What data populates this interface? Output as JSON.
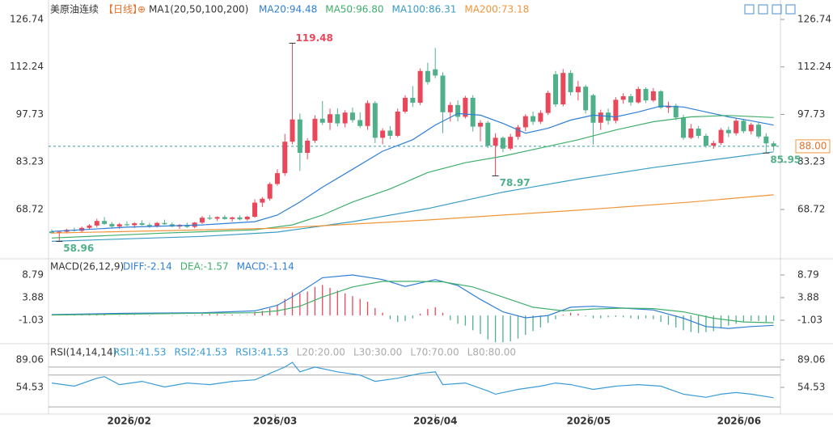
{
  "chart_data": [
    {
      "type": "candlestick",
      "title": "美原油连续",
      "period": "【日线】",
      "icon": "⊕",
      "indicator": "MA1(20,50,100,200)",
      "up_color": "#e8485a",
      "down_color": "#4fb08a",
      "xlim": [
        -0.43,
        96.9
      ],
      "ylim": [
        54.15,
        131.68
      ],
      "xticks": [
        {
          "value": 10.3,
          "label": "2026/02"
        },
        {
          "value": 29.7,
          "label": "2026/03"
        },
        {
          "value": 51,
          "label": "2026/04"
        },
        {
          "value": 71.4,
          "label": "2026/05"
        },
        {
          "value": 91.4,
          "label": "2026/06"
        }
      ],
      "yticks": [
        126.74,
        112.24,
        97.73,
        83.23,
        68.72
      ],
      "last_price": {
        "value": 88,
        "label": "88.00"
      },
      "marked_highs": [
        32
      ],
      "marked_lows": [
        1,
        59,
        95
      ],
      "candles": [
        [
          62,
          62.6,
          61.3,
          61.5
        ],
        [
          61.5,
          62.2,
          58.96,
          61.9
        ],
        [
          61.9,
          62.8,
          61.4,
          62.5
        ],
        [
          62.5,
          63.2,
          62,
          62.2
        ],
        [
          62.2,
          63.5,
          61.8,
          63.1
        ],
        [
          63.1,
          64.2,
          62.6,
          63.8
        ],
        [
          63.8,
          65.9,
          63.2,
          65.2
        ],
        [
          65.2,
          66.4,
          64,
          64.3
        ],
        [
          64.3,
          64.9,
          63,
          63.5
        ],
        [
          63.5,
          64.6,
          62.8,
          64.2
        ],
        [
          64.2,
          65.1,
          63.6,
          63.9
        ],
        [
          63.9,
          64.8,
          63,
          64.5
        ],
        [
          64.5,
          65.4,
          63.8,
          64
        ],
        [
          64,
          64.6,
          63.1,
          63.6
        ],
        [
          63.6,
          64.9,
          63.2,
          64.6
        ],
        [
          64.6,
          65.6,
          64,
          64.2
        ],
        [
          64.2,
          64.8,
          63.3,
          63.5
        ],
        [
          63.5,
          64.3,
          62.8,
          64
        ],
        [
          64,
          64.7,
          63.1,
          63.4
        ],
        [
          63.4,
          64.9,
          63,
          64.7
        ],
        [
          64.7,
          66.7,
          64.3,
          66.2
        ],
        [
          66.2,
          67,
          65.5,
          65.9
        ],
        [
          65.9,
          66.6,
          65.2,
          66.4
        ],
        [
          66.4,
          67,
          65.6,
          65.8
        ],
        [
          65.8,
          66.5,
          65,
          66.3
        ],
        [
          66.3,
          66.9,
          65.4,
          65.7
        ],
        [
          65.7,
          66.8,
          65.2,
          66.5
        ],
        [
          66.5,
          71.8,
          66.2,
          70.8
        ],
        [
          70.8,
          72.5,
          69.5,
          72
        ],
        [
          72,
          77,
          71.4,
          76.5
        ],
        [
          76.5,
          81,
          76,
          79.8
        ],
        [
          79.8,
          91.8,
          79,
          89.4
        ],
        [
          89.4,
          119.48,
          88.6,
          96.2
        ],
        [
          96.2,
          98,
          80.5,
          86
        ],
        [
          86,
          90.5,
          84,
          89.7
        ],
        [
          89.7,
          97.5,
          89,
          96.4
        ],
        [
          96.4,
          101.8,
          94.5,
          95.2
        ],
        [
          95.2,
          99.5,
          93,
          97.8
        ],
        [
          97.8,
          99.6,
          94,
          95
        ],
        [
          95,
          99,
          93.8,
          98.3
        ],
        [
          98.3,
          99.8,
          95.2,
          96
        ],
        [
          96,
          98.4,
          93.6,
          94.2
        ],
        [
          94.2,
          102,
          93,
          101.2
        ],
        [
          101.2,
          101.8,
          89,
          90.6
        ],
        [
          90.6,
          93.5,
          88.6,
          92.8
        ],
        [
          92.8,
          94.2,
          90.2,
          91.2
        ],
        [
          91.2,
          99.5,
          90.8,
          98.6
        ],
        [
          98.6,
          103.6,
          98,
          102.8
        ],
        [
          102.8,
          106.4,
          100,
          101.3
        ],
        [
          101.3,
          111.8,
          100.6,
          111
        ],
        [
          111,
          113.5,
          106.8,
          107.6
        ],
        [
          111.5,
          118,
          108.8,
          109.6
        ],
        [
          109.6,
          110.6,
          92,
          98.4
        ],
        [
          98.4,
          101.5,
          95.5,
          100.6
        ],
        [
          100.6,
          102,
          95.6,
          97
        ],
        [
          97,
          103.4,
          96.5,
          102.8
        ],
        [
          102.8,
          103.6,
          92.5,
          94
        ],
        [
          94,
          96,
          89.5,
          95.2
        ],
        [
          95.2,
          95.8,
          87.5,
          88.2
        ],
        [
          88.2,
          92,
          78.97,
          90.6
        ],
        [
          90.6,
          91,
          86.2,
          87.3
        ],
        [
          87.3,
          91.8,
          86.8,
          90.9
        ],
        [
          90.9,
          94.5,
          90,
          93.8
        ],
        [
          93.8,
          97.8,
          92.6,
          97.2
        ],
        [
          97.2,
          98.6,
          94.5,
          95.5
        ],
        [
          95.5,
          99,
          94.8,
          98.2
        ],
        [
          98.2,
          105,
          97.6,
          104.3
        ],
        [
          110,
          111,
          100,
          100.8
        ],
        [
          100.8,
          111.6,
          100.2,
          110.4
        ],
        [
          110.4,
          111.2,
          103.5,
          104.5
        ],
        [
          104.5,
          108,
          102,
          106.2
        ],
        [
          106.2,
          106.8,
          98,
          99
        ],
        [
          103.6,
          104,
          88.5,
          95.2
        ],
        [
          95.2,
          99.2,
          93,
          98.3
        ],
        [
          98.3,
          99.5,
          94.6,
          95.8
        ],
        [
          95.8,
          103,
          95,
          102.2
        ],
        [
          102.2,
          104.2,
          101,
          103.3
        ],
        [
          103.3,
          104,
          100.4,
          101.4
        ],
        [
          101.4,
          106.2,
          101,
          105.5
        ],
        [
          105.5,
          106,
          101.2,
          102
        ],
        [
          102,
          105.8,
          101.5,
          104.8
        ],
        [
          104.8,
          105.2,
          99.4,
          99.8
        ],
        [
          99.8,
          101.6,
          98.2,
          100.4
        ],
        [
          100.4,
          101,
          96,
          96.8
        ],
        [
          96.8,
          97.6,
          90,
          90.6
        ],
        [
          90.6,
          94.8,
          90.2,
          93.4
        ],
        [
          93.4,
          94.2,
          90.4,
          91.2
        ],
        [
          91.2,
          91.9,
          87.6,
          88.2
        ],
        [
          88.2,
          89.7,
          87.2,
          89
        ],
        [
          89,
          93.6,
          88.4,
          93
        ],
        [
          93,
          94,
          90.8,
          92
        ],
        [
          92,
          96.5,
          91.3,
          95.8
        ],
        [
          95.8,
          96.4,
          92,
          92.6
        ],
        [
          92.6,
          95.2,
          91.6,
          94.6
        ],
        [
          94.6,
          95.4,
          90.4,
          91
        ],
        [
          91,
          92,
          85.95,
          88.9
        ],
        [
          88.9,
          89.5,
          86.6,
          88
        ]
      ],
      "lines": [
        {
          "name": "MA20:94.48",
          "color": "#2f7fd6",
          "x": [
            0,
            10,
            20,
            27,
            30,
            33,
            36,
            40,
            44,
            48,
            51,
            54,
            57,
            60,
            63,
            66,
            69,
            72,
            75,
            78,
            81,
            84,
            87,
            90,
            93,
            96
          ],
          "values": [
            62,
            63.3,
            64,
            65,
            67,
            71,
            75.5,
            81,
            86.5,
            90,
            94.5,
            98,
            97.5,
            95,
            92,
            93.5,
            96,
            97.5,
            97,
            98.5,
            100.3,
            100,
            98.5,
            97,
            95.8,
            94.48
          ]
        },
        {
          "name": "MA50:96.80",
          "color": "#3fae6a",
          "x": [
            0,
            15,
            27,
            32,
            36,
            40,
            45,
            50,
            55,
            60,
            65,
            70,
            75,
            80,
            85,
            90,
            96
          ],
          "values": [
            60,
            61.5,
            62.5,
            64,
            67,
            71,
            75,
            80,
            83,
            85,
            87.5,
            90,
            93,
            95.5,
            97,
            97.4,
            96.8
          ]
        },
        {
          "name": "MA100:86.31",
          "color": "#3a9cc6",
          "x": [
            0,
            20,
            30,
            40,
            50,
            60,
            70,
            80,
            90,
            96
          ],
          "values": [
            59,
            60.5,
            61.8,
            65,
            69,
            74,
            78,
            81.5,
            84.5,
            86.31
          ]
        },
        {
          "name": "MA200:73.18",
          "color": "#f0953a",
          "x": [
            0,
            30,
            50,
            70,
            85,
            96
          ],
          "values": [
            61.5,
            63,
            65.5,
            68.5,
            71,
            73.18
          ]
        }
      ]
    },
    {
      "type": "macd",
      "title": "MACD(26,12,9)",
      "ylim": [
        -6.12,
        11.95
      ],
      "yticks": [
        8.79,
        3.88,
        -1.03
      ],
      "histogram": {
        "name": "MACD:-1.14",
        "up_color": "#e8485a",
        "down_color": "#4fb08a",
        "values": [
          0.1,
          0.2,
          0.1,
          0.2,
          0.3,
          0.3,
          0.4,
          0.2,
          0,
          -0.1,
          0.1,
          0.1,
          0,
          -0.1,
          0,
          0,
          -0.1,
          0,
          -0.1,
          0.1,
          0.3,
          0.3,
          0.3,
          0.2,
          0.2,
          0.1,
          0.1,
          0.8,
          1,
          1.6,
          2.4,
          3.6,
          5,
          4.8,
          5.2,
          6.2,
          6.6,
          6,
          5.4,
          4.8,
          4.2,
          3.6,
          3,
          1.6,
          0.6,
          -0.8,
          -1.4,
          -1.2,
          -0.6,
          0.4,
          1.4,
          1.8,
          0.6,
          -1,
          -1.8,
          -2.2,
          -3.2,
          -4,
          -5.2,
          -5.8,
          -5.8,
          -5.6,
          -5,
          -4.2,
          -3.4,
          -2.6,
          -1.6,
          -0.8,
          0.2,
          0.6,
          0.4,
          -0.2,
          -0.6,
          -0.6,
          -0.4,
          -0.3,
          -0.4,
          -0.6,
          -0.8,
          -0.6,
          -0.8,
          -1.4,
          -2,
          -2.6,
          -3.2,
          -3.6,
          -3.8,
          -3.6,
          -3.4,
          -2.8,
          -2.2,
          -1.8,
          -1.4,
          -1.2,
          -1.2,
          -1.4,
          -1.14
        ]
      },
      "lines": [
        {
          "name": "DIFF:-2.14",
          "color": "#2f7fd6",
          "x": [
            0,
            10,
            20,
            27,
            30,
            33,
            36,
            40,
            44,
            47,
            51,
            54,
            57,
            60,
            63,
            66,
            69,
            72,
            76,
            80,
            84,
            87,
            90,
            93,
            96
          ],
          "values": [
            0.2,
            0.5,
            0.6,
            1,
            2.2,
            5,
            8.2,
            8.8,
            7.8,
            6.3,
            7.8,
            6.5,
            3.5,
            0.8,
            -0.5,
            0,
            1.8,
            2,
            1.6,
            1.2,
            -0.6,
            -2.4,
            -2.8,
            -2.4,
            -2.14
          ]
        },
        {
          "name": "DEA:-1.57",
          "color": "#3fae6a",
          "x": [
            0,
            20,
            27,
            30,
            33,
            36,
            40,
            44,
            48,
            52,
            56,
            60,
            64,
            68,
            72,
            76,
            80,
            84,
            88,
            92,
            96
          ],
          "values": [
            0.1,
            0.5,
            0.6,
            1,
            2,
            4,
            6.2,
            7.4,
            7.4,
            7.3,
            6.2,
            4,
            1.8,
            1,
            1.4,
            1.6,
            1.5,
            0.8,
            -0.6,
            -1.4,
            -1.57
          ]
        }
      ]
    },
    {
      "type": "rsi",
      "title": "RSI(14,14,14)",
      "ylim": [
        21,
        106.32
      ],
      "yticks": [
        89.06,
        54.53
      ],
      "lines": [
        {
          "name": "RSI1:41.53",
          "color": "#3a9cd6",
          "x": [
            0,
            3,
            6,
            7,
            9,
            12,
            15,
            18,
            21,
            24,
            27,
            29,
            31,
            32,
            33,
            35,
            38,
            41,
            43,
            46,
            49,
            51,
            52,
            55,
            58,
            59,
            62,
            65,
            67,
            69,
            72,
            75,
            78,
            81,
            84,
            87,
            89,
            91,
            93,
            96
          ],
          "values": [
            60,
            56,
            66,
            68,
            58,
            62,
            55,
            60,
            58,
            62,
            64,
            72,
            80,
            86,
            74,
            80,
            74,
            70,
            62,
            66,
            72,
            74,
            58,
            60,
            50,
            46,
            52,
            56,
            60,
            58,
            52,
            56,
            58,
            56,
            46,
            42,
            46,
            48,
            46,
            41.53
          ]
        }
      ],
      "legend_labels": [
        {
          "text": "RSI2:41.53",
          "color": "#3a9cd6"
        },
        {
          "text": "RSI3:41.53",
          "color": "#3a9cd6"
        }
      ],
      "levels": [
        {
          "value": 20,
          "label": "L20:20.00"
        },
        {
          "value": 30,
          "label": "L30:30.00"
        },
        {
          "value": 70,
          "label": "L70:70.00"
        },
        {
          "value": 80,
          "label": "L80:80.00"
        }
      ]
    }
  ]
}
